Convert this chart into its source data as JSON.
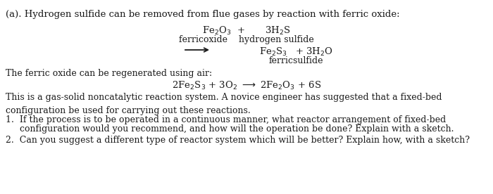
{
  "bg_color": "#ffffff",
  "text_color": "#1a1a1a",
  "title_line": "(a). Hydrogen sulfide can be removed from flue gases by reaction with ferric oxide:",
  "regen_intro": "The ferric oxide can be regenerated using air:",
  "body_text": "This is a gas-solid noncatalytic reaction system. A novice engineer has suggested that a fixed-bed\nconfiguration be used for carrying out these reactions.",
  "q1_a": "1.  If the process is to be operated in a continuous manner, what reactor arrangement of fixed-bed",
  "q1_b": "     configuration would you recommend, and how will the operation be done? Explain with a sketch.",
  "q2": "2.  Can you suggest a different type of reactor system which will be better? Explain how, with a sketch?",
  "fs_title": 9.5,
  "fs_body": 9.0,
  "fs_eq": 9.5
}
